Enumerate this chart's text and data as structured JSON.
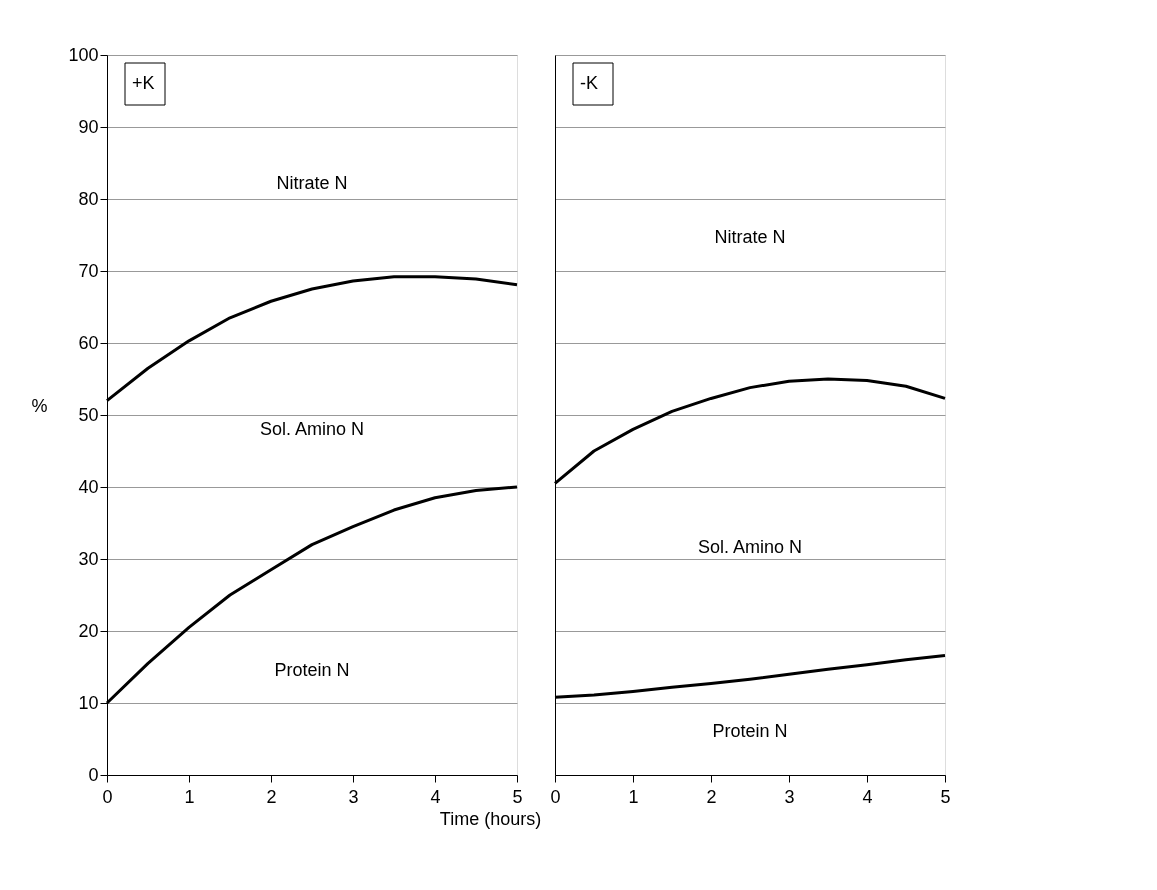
{
  "chart_data": [
    {
      "type": "line",
      "ylabel": "%",
      "xlabel": "Time (hours)",
      "x": [
        0,
        0.5,
        1,
        1.5,
        2,
        2.5,
        3,
        3.5,
        4,
        4.5,
        5
      ],
      "series": [
        {
          "color": "#000000",
          "values": [
            52,
            56.5,
            60.3,
            63.5,
            65.8,
            67.5,
            68.6,
            69.2,
            69.2,
            68.9,
            68.1
          ]
        },
        {
          "color": "#000000",
          "values": [
            10,
            15.5,
            20.5,
            25,
            28.5,
            32,
            34.5,
            36.8,
            38.5,
            39.5,
            40
          ]
        }
      ],
      "xlim": [
        0,
        5
      ],
      "xticks": [
        0,
        1,
        2,
        3,
        4,
        5
      ],
      "ylim": [
        0,
        100
      ],
      "yticks": [
        0,
        10,
        20,
        30,
        40,
        50,
        60,
        70,
        80,
        90,
        100
      ],
      "grid": "y",
      "marker": "none",
      "line_style": "solid",
      "annotations": [
        "+K",
        "Nitrate N",
        "Sol. Amino N",
        "Protein N"
      ]
    },
    {
      "type": "line",
      "x": [
        0,
        0.5,
        1,
        1.5,
        2,
        2.5,
        3,
        3.5,
        4,
        4.5,
        5
      ],
      "series": [
        {
          "color": "#000000",
          "values": [
            40.5,
            45,
            48,
            50.5,
            52.3,
            53.8,
            54.7,
            55,
            54.8,
            54,
            52.3
          ]
        },
        {
          "color": "#000000",
          "values": [
            10.8,
            11.1,
            11.6,
            12.2,
            12.7,
            13.3,
            14,
            14.7,
            15.3,
            16,
            16.6
          ]
        }
      ],
      "xlim": [
        0,
        5
      ],
      "xticks": [
        0,
        1,
        2,
        3,
        4,
        5
      ],
      "ylim": [
        0,
        100
      ],
      "yticks": [
        0,
        10,
        20,
        30,
        40,
        50,
        60,
        70,
        80,
        90,
        100
      ],
      "grid": "y",
      "marker": "none",
      "line_style": "solid",
      "tick_labels": "x",
      "annotations": [
        "-K",
        "Nitrate N",
        "Sol. Amino N",
        "Protein N"
      ]
    }
  ]
}
